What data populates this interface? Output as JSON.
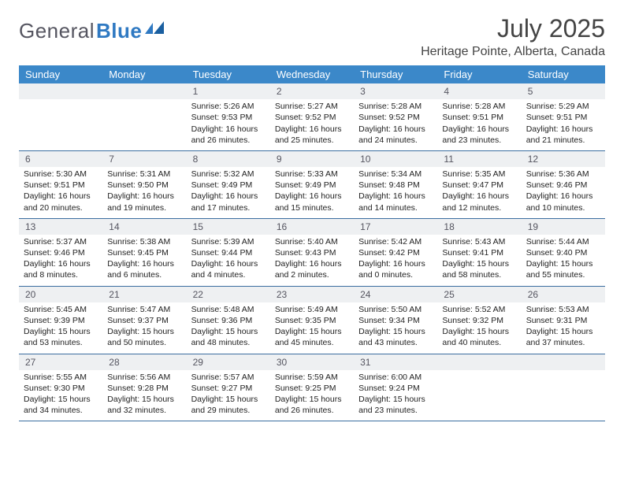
{
  "brand": {
    "part1": "General",
    "part2": "Blue"
  },
  "title": "July 2025",
  "location": "Heritage Pointe, Alberta, Canada",
  "colors": {
    "header_bg": "#3b88c9",
    "header_text": "#ffffff",
    "daynum_bg": "#eef0f2",
    "week_border": "#3b6ea0",
    "brand_gray": "#555560",
    "brand_blue": "#2f79c2",
    "text": "#222222",
    "background": "#ffffff"
  },
  "typography": {
    "title_fontsize": 32,
    "location_fontsize": 16,
    "header_fontsize": 13,
    "body_fontsize": 10.5,
    "logo_fontsize": 26
  },
  "weekdays": [
    "Sunday",
    "Monday",
    "Tuesday",
    "Wednesday",
    "Thursday",
    "Friday",
    "Saturday"
  ],
  "weeks": [
    [
      null,
      null,
      {
        "n": "1",
        "sr": "Sunrise: 5:26 AM",
        "ss": "Sunset: 9:53 PM",
        "d1": "Daylight: 16 hours",
        "d2": "and 26 minutes."
      },
      {
        "n": "2",
        "sr": "Sunrise: 5:27 AM",
        "ss": "Sunset: 9:52 PM",
        "d1": "Daylight: 16 hours",
        "d2": "and 25 minutes."
      },
      {
        "n": "3",
        "sr": "Sunrise: 5:28 AM",
        "ss": "Sunset: 9:52 PM",
        "d1": "Daylight: 16 hours",
        "d2": "and 24 minutes."
      },
      {
        "n": "4",
        "sr": "Sunrise: 5:28 AM",
        "ss": "Sunset: 9:51 PM",
        "d1": "Daylight: 16 hours",
        "d2": "and 23 minutes."
      },
      {
        "n": "5",
        "sr": "Sunrise: 5:29 AM",
        "ss": "Sunset: 9:51 PM",
        "d1": "Daylight: 16 hours",
        "d2": "and 21 minutes."
      }
    ],
    [
      {
        "n": "6",
        "sr": "Sunrise: 5:30 AM",
        "ss": "Sunset: 9:51 PM",
        "d1": "Daylight: 16 hours",
        "d2": "and 20 minutes."
      },
      {
        "n": "7",
        "sr": "Sunrise: 5:31 AM",
        "ss": "Sunset: 9:50 PM",
        "d1": "Daylight: 16 hours",
        "d2": "and 19 minutes."
      },
      {
        "n": "8",
        "sr": "Sunrise: 5:32 AM",
        "ss": "Sunset: 9:49 PM",
        "d1": "Daylight: 16 hours",
        "d2": "and 17 minutes."
      },
      {
        "n": "9",
        "sr": "Sunrise: 5:33 AM",
        "ss": "Sunset: 9:49 PM",
        "d1": "Daylight: 16 hours",
        "d2": "and 15 minutes."
      },
      {
        "n": "10",
        "sr": "Sunrise: 5:34 AM",
        "ss": "Sunset: 9:48 PM",
        "d1": "Daylight: 16 hours",
        "d2": "and 14 minutes."
      },
      {
        "n": "11",
        "sr": "Sunrise: 5:35 AM",
        "ss": "Sunset: 9:47 PM",
        "d1": "Daylight: 16 hours",
        "d2": "and 12 minutes."
      },
      {
        "n": "12",
        "sr": "Sunrise: 5:36 AM",
        "ss": "Sunset: 9:46 PM",
        "d1": "Daylight: 16 hours",
        "d2": "and 10 minutes."
      }
    ],
    [
      {
        "n": "13",
        "sr": "Sunrise: 5:37 AM",
        "ss": "Sunset: 9:46 PM",
        "d1": "Daylight: 16 hours",
        "d2": "and 8 minutes."
      },
      {
        "n": "14",
        "sr": "Sunrise: 5:38 AM",
        "ss": "Sunset: 9:45 PM",
        "d1": "Daylight: 16 hours",
        "d2": "and 6 minutes."
      },
      {
        "n": "15",
        "sr": "Sunrise: 5:39 AM",
        "ss": "Sunset: 9:44 PM",
        "d1": "Daylight: 16 hours",
        "d2": "and 4 minutes."
      },
      {
        "n": "16",
        "sr": "Sunrise: 5:40 AM",
        "ss": "Sunset: 9:43 PM",
        "d1": "Daylight: 16 hours",
        "d2": "and 2 minutes."
      },
      {
        "n": "17",
        "sr": "Sunrise: 5:42 AM",
        "ss": "Sunset: 9:42 PM",
        "d1": "Daylight: 16 hours",
        "d2": "and 0 minutes."
      },
      {
        "n": "18",
        "sr": "Sunrise: 5:43 AM",
        "ss": "Sunset: 9:41 PM",
        "d1": "Daylight: 15 hours",
        "d2": "and 58 minutes."
      },
      {
        "n": "19",
        "sr": "Sunrise: 5:44 AM",
        "ss": "Sunset: 9:40 PM",
        "d1": "Daylight: 15 hours",
        "d2": "and 55 minutes."
      }
    ],
    [
      {
        "n": "20",
        "sr": "Sunrise: 5:45 AM",
        "ss": "Sunset: 9:39 PM",
        "d1": "Daylight: 15 hours",
        "d2": "and 53 minutes."
      },
      {
        "n": "21",
        "sr": "Sunrise: 5:47 AM",
        "ss": "Sunset: 9:37 PM",
        "d1": "Daylight: 15 hours",
        "d2": "and 50 minutes."
      },
      {
        "n": "22",
        "sr": "Sunrise: 5:48 AM",
        "ss": "Sunset: 9:36 PM",
        "d1": "Daylight: 15 hours",
        "d2": "and 48 minutes."
      },
      {
        "n": "23",
        "sr": "Sunrise: 5:49 AM",
        "ss": "Sunset: 9:35 PM",
        "d1": "Daylight: 15 hours",
        "d2": "and 45 minutes."
      },
      {
        "n": "24",
        "sr": "Sunrise: 5:50 AM",
        "ss": "Sunset: 9:34 PM",
        "d1": "Daylight: 15 hours",
        "d2": "and 43 minutes."
      },
      {
        "n": "25",
        "sr": "Sunrise: 5:52 AM",
        "ss": "Sunset: 9:32 PM",
        "d1": "Daylight: 15 hours",
        "d2": "and 40 minutes."
      },
      {
        "n": "26",
        "sr": "Sunrise: 5:53 AM",
        "ss": "Sunset: 9:31 PM",
        "d1": "Daylight: 15 hours",
        "d2": "and 37 minutes."
      }
    ],
    [
      {
        "n": "27",
        "sr": "Sunrise: 5:55 AM",
        "ss": "Sunset: 9:30 PM",
        "d1": "Daylight: 15 hours",
        "d2": "and 34 minutes."
      },
      {
        "n": "28",
        "sr": "Sunrise: 5:56 AM",
        "ss": "Sunset: 9:28 PM",
        "d1": "Daylight: 15 hours",
        "d2": "and 32 minutes."
      },
      {
        "n": "29",
        "sr": "Sunrise: 5:57 AM",
        "ss": "Sunset: 9:27 PM",
        "d1": "Daylight: 15 hours",
        "d2": "and 29 minutes."
      },
      {
        "n": "30",
        "sr": "Sunrise: 5:59 AM",
        "ss": "Sunset: 9:25 PM",
        "d1": "Daylight: 15 hours",
        "d2": "and 26 minutes."
      },
      {
        "n": "31",
        "sr": "Sunrise: 6:00 AM",
        "ss": "Sunset: 9:24 PM",
        "d1": "Daylight: 15 hours",
        "d2": "and 23 minutes."
      },
      null,
      null
    ]
  ]
}
